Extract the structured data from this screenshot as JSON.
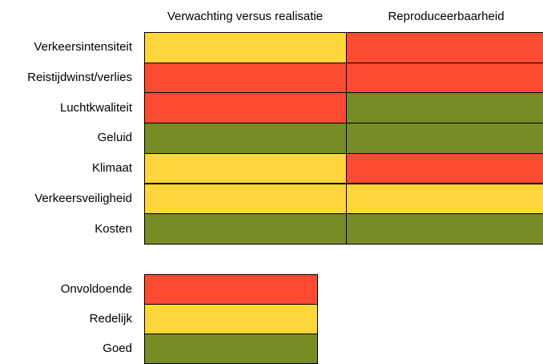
{
  "columns": [
    "Verwachting versus realisatie",
    "Reproduceerbaarheid"
  ],
  "rows": [
    {
      "label": "Verkeersintensiteit",
      "cells": [
        "Redelijk",
        "Onvoldoende"
      ]
    },
    {
      "label": "Reistijdwinst/verlies",
      "cells": [
        "Onvoldoende",
        "Onvoldoende"
      ]
    },
    {
      "label": "Luchtkwaliteit",
      "cells": [
        "Onvoldoende",
        "Goed"
      ]
    },
    {
      "label": "Geluid",
      "cells": [
        "Goed",
        "Goed"
      ]
    },
    {
      "label": "Klimaat",
      "cells": [
        "Redelijk",
        "Onvoldoende"
      ]
    },
    {
      "label": "Verkeersveiligheid",
      "cells": [
        "Redelijk",
        "Redelijk"
      ]
    },
    {
      "label": "Kosten",
      "cells": [
        "Goed",
        "Goed"
      ]
    }
  ],
  "legend": [
    {
      "label": "Onvoldoende",
      "color": "#fd4a32"
    },
    {
      "label": "Redelijk",
      "color": "#fcd63a"
    },
    {
      "label": "Goed",
      "color": "#778c24"
    }
  ]
}
